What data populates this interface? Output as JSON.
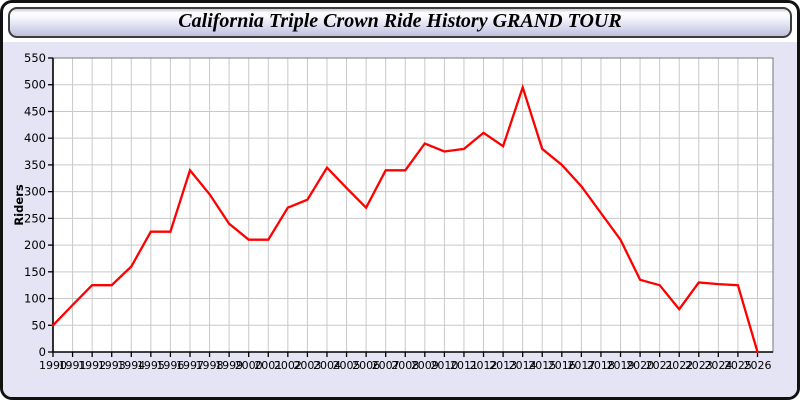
{
  "window": {
    "title": "California Triple Crown Ride History GRAND TOUR"
  },
  "colors": {
    "panel_background": "#e4e4f4",
    "plot_background": "#ffffff",
    "gridline": "#c9c9c9",
    "plot_frame": "#777777",
    "axis": "#000000",
    "line": "#ff0000",
    "tick_text": "#000000"
  },
  "chart_data": {
    "type": "line",
    "title": "California Triple Crown Ride History GRAND TOUR",
    "xlabel": "",
    "ylabel": "Riders",
    "ylim": [
      0,
      550
    ],
    "ytick_step": 50,
    "grid": true,
    "legend": "none",
    "x": [
      1990,
      1991,
      1992,
      1993,
      1994,
      1995,
      1996,
      1997,
      1998,
      1999,
      2000,
      2001,
      2002,
      2003,
      2004,
      2005,
      2006,
      2007,
      2008,
      2009,
      2010,
      2011,
      2012,
      2013,
      2014,
      2015,
      2016,
      2017,
      2018,
      2019,
      2020,
      2021,
      2022,
      2023,
      2024,
      2025,
      2026
    ],
    "series": [
      {
        "name": "Riders",
        "values": [
          50,
          88,
          125,
          125,
          160,
          225,
          225,
          340,
          295,
          240,
          210,
          210,
          270,
          285,
          345,
          307,
          270,
          340,
          340,
          390,
          375,
          380,
          410,
          385,
          495,
          380,
          350,
          310,
          260,
          210,
          135,
          125,
          80,
          130,
          127,
          125,
          0
        ]
      }
    ]
  }
}
